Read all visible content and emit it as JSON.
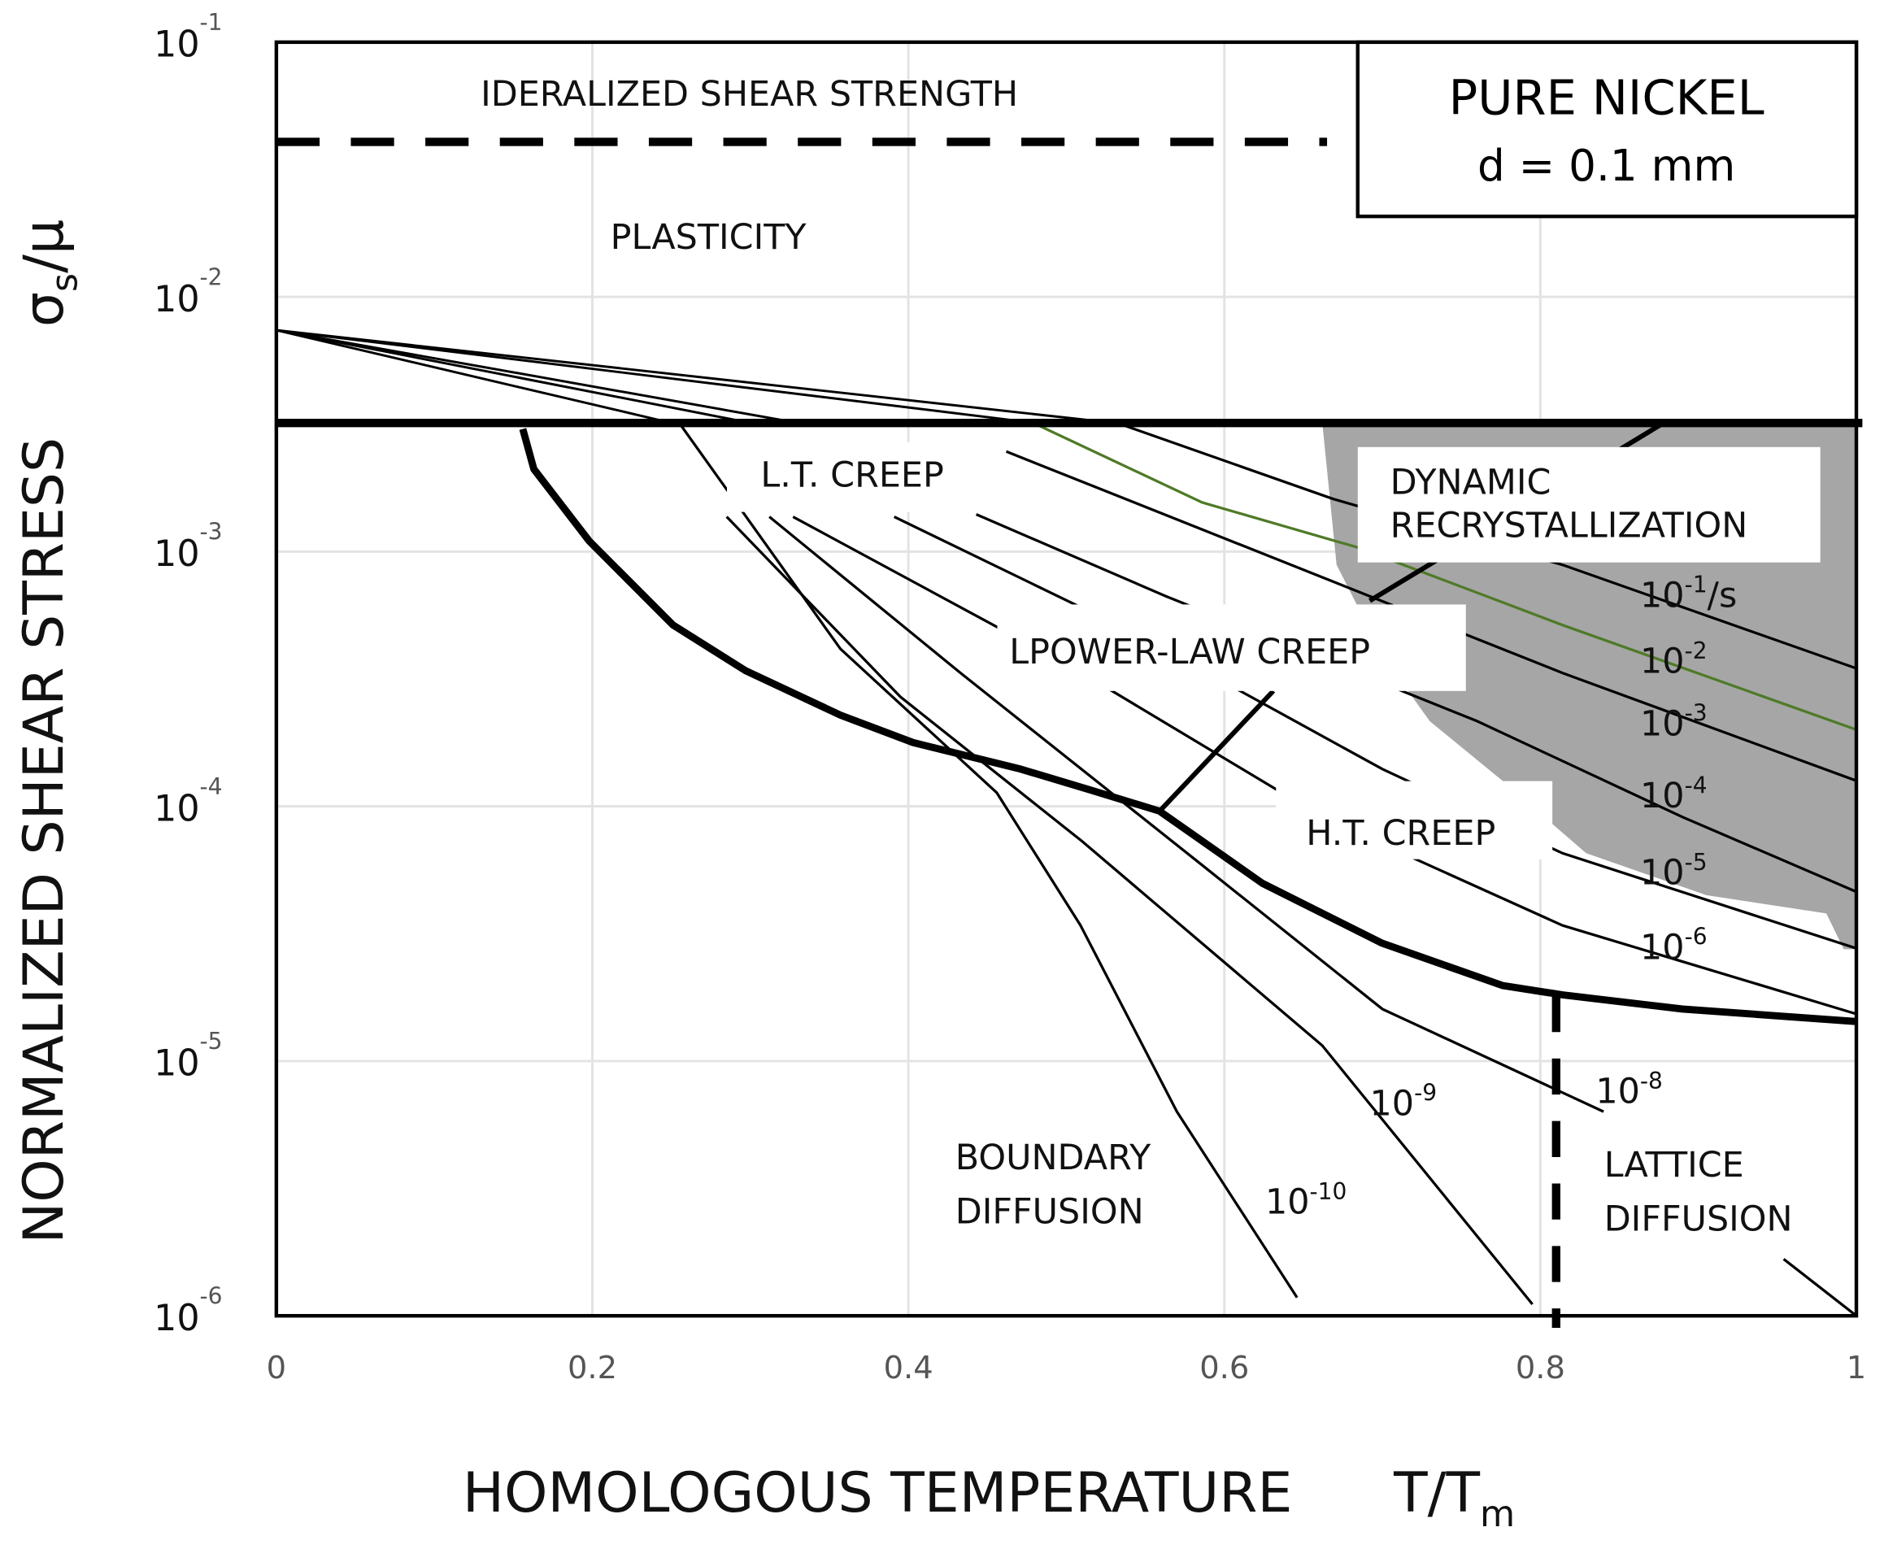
{
  "chart_data": {
    "type": "line",
    "title": "",
    "xlabel": "HOMOLOGOUS TEMPERATURE",
    "xlabel_symbol": "T/T",
    "xlabel_symbol_sub": "m",
    "ylabel": "NORMALIZED SHEAR STRESS",
    "ylabel_symbol": "σ",
    "ylabel_symbol_sub": "s",
    "ylabel_symbol_tail": "/μ",
    "xlim": [
      0,
      1
    ],
    "ylim": [
      1e-06,
      0.1
    ],
    "yscale": "log",
    "grid": true,
    "x_ticks": [
      "0",
      "0.2",
      "0.4",
      "0.6",
      "0.8",
      "1"
    ],
    "y_ticks": [
      {
        "base": "10",
        "exp": "-1"
      },
      {
        "base": "10",
        "exp": "-2"
      },
      {
        "base": "10",
        "exp": "-3"
      },
      {
        "base": "10",
        "exp": "-4"
      },
      {
        "base": "10",
        "exp": "-5"
      },
      {
        "base": "10",
        "exp": "-6"
      }
    ],
    "info_box": {
      "title": "PURE NICKEL",
      "subtitle": "d = 0.1 mm"
    },
    "region_labels": {
      "ideal": "IDERALIZED SHEAR STRENGTH",
      "plasticity": "PLASTICITY",
      "lt_creep": "L.T. CREEP",
      "drx_1": "DYNAMIC",
      "drx_2": "RECRYSTALLIZATION",
      "power_law": "LPOWER-LAW CREEP",
      "ht_creep": "H.T. CREEP",
      "boundary_1": "BOUNDARY",
      "boundary_2": "DIFFUSION",
      "lattice_1": "LATTICE",
      "lattice_2": "DIFFUSION"
    },
    "colors": {
      "line": "#000000",
      "highlight_contour": "#4f7a28",
      "drx_fill": "#a6a6a6",
      "grid": "#e3e3e3"
    },
    "ideal_shear_strength": {
      "y": 0.0406,
      "x_range": [
        0,
        0.665
      ],
      "style": "dashed"
    },
    "plasticity_boundary": {
      "y": 0.0032,
      "x_range": [
        0,
        1
      ],
      "style": "thick"
    },
    "lattice_boundary_divider": {
      "x": 0.81,
      "y_range": [
        1e-06,
        1.8e-05
      ],
      "style": "dashed"
    },
    "diffusion_boundary": [
      [
        0.156,
        0.00303
      ],
      [
        0.163,
        0.00211
      ],
      [
        0.198,
        0.0011
      ],
      [
        0.251,
        0.000515
      ],
      [
        0.297,
        0.000341
      ],
      [
        0.357,
        0.000228
      ],
      [
        0.403,
        0.000178
      ],
      [
        0.471,
        0.00014
      ],
      [
        0.517,
        0.000115
      ],
      [
        0.559,
        9.57e-05
      ],
      [
        0.624,
        4.99e-05
      ],
      [
        0.7,
        2.9e-05
      ],
      [
        0.776,
        1.98e-05
      ],
      [
        0.814,
        1.82e-05
      ],
      [
        0.89,
        1.6e-05
      ],
      [
        1.0,
        1.43e-05
      ]
    ],
    "lt_ht_boundary": [
      [
        0.559,
        9.57e-05
      ],
      [
        0.631,
        0.000284
      ]
    ],
    "drx_boundary": [
      [
        0.692,
        0.000641
      ],
      [
        0.878,
        0.0032
      ]
    ],
    "drx_region": [
      [
        0.662,
        0.0032
      ],
      [
        0.671,
        0.000887
      ],
      [
        0.7,
        0.000393
      ],
      [
        0.73,
        0.000216
      ],
      [
        0.776,
        0.000126
      ],
      [
        0.829,
        6.55e-05
      ],
      [
        0.905,
        4.48e-05
      ],
      [
        0.981,
        3.8e-05
      ],
      [
        0.992,
        2.75e-05
      ],
      [
        1.0,
        2.75e-05
      ],
      [
        1.0,
        0.0032
      ]
    ],
    "fan_lines": [
      [
        [
          0,
          0.0074
        ],
        [
          0.25,
          0.0032
        ]
      ],
      [
        [
          0,
          0.0074
        ],
        [
          0.3,
          0.0032
        ]
      ],
      [
        [
          0,
          0.0074
        ],
        [
          0.33,
          0.0032
        ]
      ],
      [
        [
          0,
          0.0074
        ],
        [
          0.48,
          0.0032
        ]
      ],
      [
        [
          0,
          0.0074
        ],
        [
          0.53,
          0.0032
        ]
      ]
    ],
    "strain_rate_contours": [
      {
        "exp": "-1",
        "unit": "/s",
        "highlight": false,
        "points": [
          [
            0.532,
            0.0032
          ],
          [
            0.669,
            0.00161
          ],
          [
            0.814,
            0.000887
          ],
          [
            1.0,
            0.000348
          ]
        ]
      },
      {
        "exp": "-2",
        "unit": "",
        "highlight": true,
        "points": [
          [
            0.479,
            0.0032
          ],
          [
            0.586,
            0.00156
          ],
          [
            0.684,
            0.00104
          ],
          [
            0.814,
            0.000515
          ],
          [
            1.0,
            0.0002
          ]
        ]
      },
      {
        "exp": "-3",
        "unit": "",
        "highlight": false,
        "points": [
          [
            0.462,
            0.00247
          ],
          [
            0.692,
            0.000668
          ],
          [
            0.814,
            0.000334
          ],
          [
            1.0,
            0.000126
          ]
        ]
      },
      {
        "exp": "-4",
        "unit": "",
        "highlight": false,
        "points": [
          [
            0.443,
            0.0014
          ],
          [
            0.563,
            0.000668
          ],
          [
            0.76,
            0.000216
          ],
          [
            0.89,
            9.08e-05
          ],
          [
            1.0,
            4.62e-05
          ]
        ]
      },
      {
        "exp": "-5",
        "unit": "",
        "highlight": false,
        "points": [
          [
            0.391,
            0.00137
          ],
          [
            0.548,
            0.000462
          ],
          [
            0.7,
            0.00014
          ],
          [
            0.814,
            6.55e-05
          ],
          [
            1.0,
            2.77e-05
          ]
        ]
      },
      {
        "exp": "-6",
        "unit": "",
        "highlight": false,
        "points": [
          [
            0.327,
            0.00137
          ],
          [
            0.51,
            0.000334
          ],
          [
            0.662,
            9.08e-05
          ],
          [
            0.814,
            3.41e-05
          ],
          [
            1.0,
            1.53e-05
          ]
        ]
      },
      {
        "exp": "-8",
        "unit": "",
        "highlight": false,
        "points": [
          [
            0.312,
            0.00137
          ],
          [
            0.433,
            0.000334
          ],
          [
            0.586,
            5.87e-05
          ],
          [
            0.7,
            1.6e-05
          ],
          [
            0.84,
            6.33e-06
          ]
        ]
      },
      {
        "exp": "-9",
        "unit": "",
        "highlight": false,
        "points": [
          [
            0.285,
            0.00137
          ],
          [
            0.395,
            0.000269
          ],
          [
            0.51,
            7.29e-05
          ],
          [
            0.662,
            1.15e-05
          ],
          [
            0.795,
            1.11e-06
          ]
        ]
      },
      {
        "exp": "-10",
        "unit": "",
        "highlight": false,
        "points": [
          [
            0.255,
            0.0032
          ],
          [
            0.357,
            0.000415
          ],
          [
            0.456,
            0.000113
          ],
          [
            0.509,
            3.41e-05
          ],
          [
            0.57,
            6.33e-06
          ],
          [
            0.646,
            1.18e-06
          ]
        ]
      }
    ],
    "lattice_contour": [
      [
        0.954,
        1.67e-06
      ],
      [
        1.0,
        1e-06
      ]
    ]
  }
}
